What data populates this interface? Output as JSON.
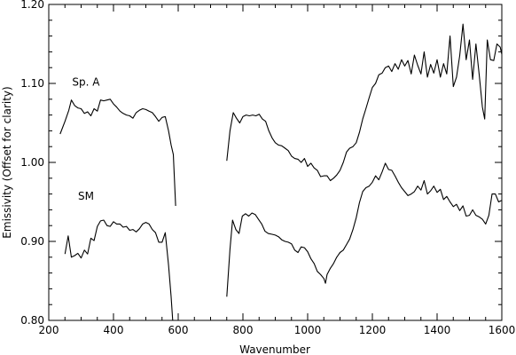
{
  "chart_data": {
    "type": "line",
    "title": "",
    "xlabel": "Wavenumber",
    "ylabel": "Emissivity (Offset for clarity)",
    "xlim": [
      200,
      1600
    ],
    "ylim": [
      0.8,
      1.2
    ],
    "grid": false,
    "x_ticks": [
      200,
      400,
      600,
      800,
      1000,
      1200,
      1400,
      1600
    ],
    "x_tick_labels": [
      "200",
      "400",
      "600",
      "800",
      "1000",
      "1200",
      "1400",
      "1600"
    ],
    "y_ticks": [
      0.8,
      0.9,
      1.0,
      1.1,
      1.2
    ],
    "y_tick_labels": [
      "0.80",
      "0.90",
      "1.00",
      "1.10",
      "1.20"
    ],
    "annotations": [
      {
        "text": "Sp. A",
        "x": 315,
        "y": 1.097
      },
      {
        "text": "SM",
        "x": 315,
        "y": 0.953
      }
    ],
    "series": [
      {
        "segments": [
          [
            [
              235,
              1.036
            ],
            [
              250,
              1.052
            ],
            [
              262,
              1.066
            ],
            [
              270,
              1.079
            ],
            [
              280,
              1.072
            ],
            [
              290,
              1.069
            ],
            [
              300,
              1.068
            ],
            [
              310,
              1.062
            ],
            [
              320,
              1.064
            ],
            [
              330,
              1.059
            ],
            [
              340,
              1.068
            ],
            [
              350,
              1.065
            ],
            [
              360,
              1.079
            ],
            [
              370,
              1.078
            ],
            [
              380,
              1.079
            ],
            [
              390,
              1.08
            ],
            [
              400,
              1.074
            ],
            [
              410,
              1.07
            ],
            [
              420,
              1.065
            ],
            [
              430,
              1.062
            ],
            [
              440,
              1.06
            ],
            [
              450,
              1.059
            ],
            [
              460,
              1.056
            ],
            [
              470,
              1.063
            ],
            [
              480,
              1.066
            ],
            [
              490,
              1.068
            ],
            [
              500,
              1.067
            ],
            [
              510,
              1.065
            ],
            [
              520,
              1.063
            ],
            [
              530,
              1.058
            ],
            [
              540,
              1.052
            ],
            [
              550,
              1.057
            ],
            [
              560,
              1.058
            ],
            [
              570,
              1.04
            ],
            [
              578,
              1.022
            ],
            [
              585,
              1.01
            ],
            [
              592,
              0.945
            ]
          ],
          [
            [
              750,
              1.002
            ],
            [
              760,
              1.04
            ],
            [
              770,
              1.063
            ],
            [
              780,
              1.056
            ],
            [
              790,
              1.05
            ],
            [
              800,
              1.058
            ],
            [
              810,
              1.06
            ],
            [
              820,
              1.059
            ],
            [
              830,
              1.06
            ],
            [
              840,
              1.059
            ],
            [
              850,
              1.061
            ],
            [
              860,
              1.055
            ],
            [
              870,
              1.052
            ],
            [
              880,
              1.04
            ],
            [
              890,
              1.031
            ],
            [
              900,
              1.025
            ],
            [
              910,
              1.022
            ],
            [
              920,
              1.021
            ],
            [
              930,
              1.018
            ],
            [
              940,
              1.015
            ],
            [
              950,
              1.008
            ],
            [
              960,
              1.005
            ],
            [
              970,
              1.004
            ],
            [
              980,
              1.0
            ],
            [
              990,
              1.005
            ],
            [
              1000,
              0.995
            ],
            [
              1010,
              0.999
            ],
            [
              1020,
              0.993
            ],
            [
              1030,
              0.99
            ],
            [
              1040,
              0.982
            ],
            [
              1050,
              0.983
            ],
            [
              1060,
              0.983
            ],
            [
              1070,
              0.977
            ],
            [
              1080,
              0.98
            ],
            [
              1090,
              0.984
            ],
            [
              1100,
              0.99
            ],
            [
              1110,
              1.0
            ],
            [
              1120,
              1.013
            ],
            [
              1130,
              1.018
            ],
            [
              1140,
              1.02
            ],
            [
              1150,
              1.025
            ],
            [
              1160,
              1.038
            ],
            [
              1170,
              1.055
            ],
            [
              1180,
              1.068
            ],
            [
              1190,
              1.082
            ],
            [
              1200,
              1.095
            ],
            [
              1210,
              1.1
            ],
            [
              1220,
              1.111
            ],
            [
              1230,
              1.113
            ],
            [
              1240,
              1.12
            ],
            [
              1250,
              1.122
            ],
            [
              1260,
              1.115
            ],
            [
              1270,
              1.125
            ],
            [
              1280,
              1.118
            ],
            [
              1290,
              1.13
            ],
            [
              1300,
              1.122
            ],
            [
              1310,
              1.129
            ],
            [
              1320,
              1.112
            ],
            [
              1330,
              1.136
            ],
            [
              1340,
              1.123
            ],
            [
              1350,
              1.112
            ],
            [
              1360,
              1.14
            ],
            [
              1370,
              1.108
            ],
            [
              1380,
              1.124
            ],
            [
              1390,
              1.113
            ],
            [
              1400,
              1.13
            ],
            [
              1410,
              1.108
            ],
            [
              1420,
              1.125
            ],
            [
              1430,
              1.112
            ],
            [
              1440,
              1.16
            ],
            [
              1450,
              1.096
            ],
            [
              1460,
              1.108
            ],
            [
              1470,
              1.135
            ],
            [
              1480,
              1.175
            ],
            [
              1490,
              1.13
            ],
            [
              1500,
              1.155
            ],
            [
              1510,
              1.105
            ],
            [
              1520,
              1.15
            ],
            [
              1530,
              1.111
            ],
            [
              1540,
              1.07
            ],
            [
              1547,
              1.055
            ],
            [
              1555,
              1.155
            ],
            [
              1565,
              1.13
            ],
            [
              1575,
              1.129
            ],
            [
              1585,
              1.15
            ],
            [
              1595,
              1.146
            ],
            [
              1600,
              1.137
            ]
          ]
        ]
      },
      {
        "segments": [
          [
            [
              250,
              0.884
            ],
            [
              260,
              0.907
            ],
            [
              270,
              0.88
            ],
            [
              280,
              0.882
            ],
            [
              290,
              0.885
            ],
            [
              300,
              0.879
            ],
            [
              310,
              0.889
            ],
            [
              320,
              0.884
            ],
            [
              330,
              0.904
            ],
            [
              340,
              0.901
            ],
            [
              350,
              0.919
            ],
            [
              360,
              0.926
            ],
            [
              370,
              0.927
            ],
            [
              380,
              0.92
            ],
            [
              390,
              0.919
            ],
            [
              400,
              0.925
            ],
            [
              410,
              0.922
            ],
            [
              420,
              0.922
            ],
            [
              430,
              0.918
            ],
            [
              440,
              0.919
            ],
            [
              450,
              0.914
            ],
            [
              460,
              0.915
            ],
            [
              470,
              0.912
            ],
            [
              480,
              0.916
            ],
            [
              490,
              0.922
            ],
            [
              500,
              0.924
            ],
            [
              510,
              0.922
            ],
            [
              520,
              0.915
            ],
            [
              530,
              0.911
            ],
            [
              540,
              0.899
            ],
            [
              550,
              0.899
            ],
            [
              560,
              0.911
            ],
            [
              570,
              0.87
            ],
            [
              578,
              0.83
            ],
            [
              583,
              0.8
            ]
          ],
          [
            [
              750,
              0.83
            ],
            [
              760,
              0.89
            ],
            [
              768,
              0.927
            ],
            [
              778,
              0.915
            ],
            [
              788,
              0.91
            ],
            [
              798,
              0.932
            ],
            [
              808,
              0.935
            ],
            [
              818,
              0.932
            ],
            [
              828,
              0.936
            ],
            [
              838,
              0.934
            ],
            [
              848,
              0.928
            ],
            [
              858,
              0.922
            ],
            [
              868,
              0.913
            ],
            [
              878,
              0.91
            ],
            [
              890,
              0.909
            ],
            [
              900,
              0.908
            ],
            [
              910,
              0.906
            ],
            [
              920,
              0.902
            ],
            [
              930,
              0.9
            ],
            [
              940,
              0.899
            ],
            [
              950,
              0.897
            ],
            [
              960,
              0.889
            ],
            [
              970,
              0.886
            ],
            [
              980,
              0.893
            ],
            [
              990,
              0.892
            ],
            [
              1000,
              0.887
            ],
            [
              1010,
              0.878
            ],
            [
              1020,
              0.872
            ],
            [
              1030,
              0.862
            ],
            [
              1040,
              0.858
            ],
            [
              1050,
              0.853
            ],
            [
              1055,
              0.847
            ],
            [
              1060,
              0.858
            ],
            [
              1070,
              0.866
            ],
            [
              1080,
              0.872
            ],
            [
              1090,
              0.88
            ],
            [
              1100,
              0.886
            ],
            [
              1110,
              0.889
            ],
            [
              1120,
              0.896
            ],
            [
              1130,
              0.903
            ],
            [
              1140,
              0.915
            ],
            [
              1150,
              0.93
            ],
            [
              1160,
              0.949
            ],
            [
              1170,
              0.963
            ],
            [
              1180,
              0.968
            ],
            [
              1190,
              0.97
            ],
            [
              1200,
              0.975
            ],
            [
              1210,
              0.983
            ],
            [
              1220,
              0.978
            ],
            [
              1230,
              0.988
            ],
            [
              1240,
              0.999
            ],
            [
              1250,
              0.991
            ],
            [
              1260,
              0.99
            ],
            [
              1270,
              0.983
            ],
            [
              1280,
              0.975
            ],
            [
              1290,
              0.968
            ],
            [
              1300,
              0.963
            ],
            [
              1310,
              0.958
            ],
            [
              1320,
              0.96
            ],
            [
              1330,
              0.963
            ],
            [
              1340,
              0.97
            ],
            [
              1350,
              0.965
            ],
            [
              1360,
              0.977
            ],
            [
              1370,
              0.96
            ],
            [
              1380,
              0.964
            ],
            [
              1390,
              0.97
            ],
            [
              1400,
              0.962
            ],
            [
              1410,
              0.966
            ],
            [
              1420,
              0.953
            ],
            [
              1430,
              0.957
            ],
            [
              1440,
              0.95
            ],
            [
              1450,
              0.944
            ],
            [
              1460,
              0.947
            ],
            [
              1470,
              0.939
            ],
            [
              1480,
              0.945
            ],
            [
              1490,
              0.932
            ],
            [
              1500,
              0.933
            ],
            [
              1510,
              0.94
            ],
            [
              1520,
              0.933
            ],
            [
              1530,
              0.931
            ],
            [
              1540,
              0.928
            ],
            [
              1550,
              0.922
            ],
            [
              1560,
              0.933
            ],
            [
              1570,
              0.96
            ],
            [
              1580,
              0.96
            ],
            [
              1590,
              0.95
            ],
            [
              1600,
              0.952
            ]
          ]
        ]
      }
    ]
  }
}
